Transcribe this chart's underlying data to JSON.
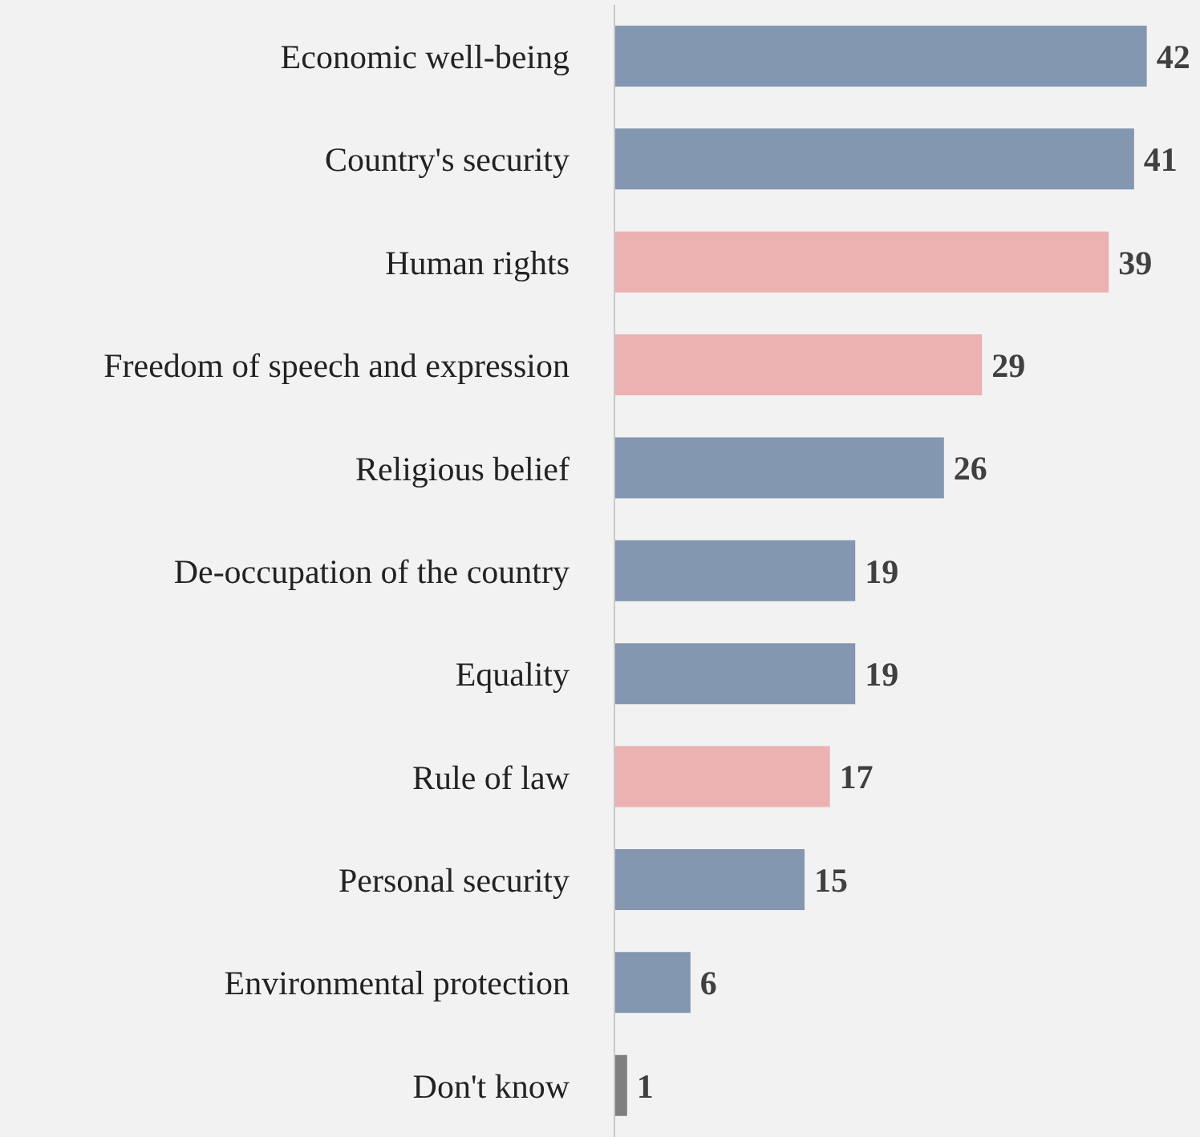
{
  "chart_data": {
    "type": "bar",
    "orientation": "horizontal",
    "categories": [
      "Economic well-being",
      "Country's security",
      "Human rights",
      "Freedom of speech and expression",
      "Religious belief",
      "De-occupation of the country",
      "Equality",
      "Rule of law",
      "Personal security",
      "Environmental protection",
      "Don't know"
    ],
    "values": [
      42,
      41,
      39,
      29,
      26,
      19,
      19,
      17,
      15,
      6,
      1
    ],
    "colors": [
      "#8497b0",
      "#8497b0",
      "#ecb1b1",
      "#ecb1b1",
      "#8497b0",
      "#8497b0",
      "#8497b0",
      "#ecb1b1",
      "#8497b0",
      "#8497b0",
      "#7f7f7f"
    ],
    "data_labels": true
  }
}
